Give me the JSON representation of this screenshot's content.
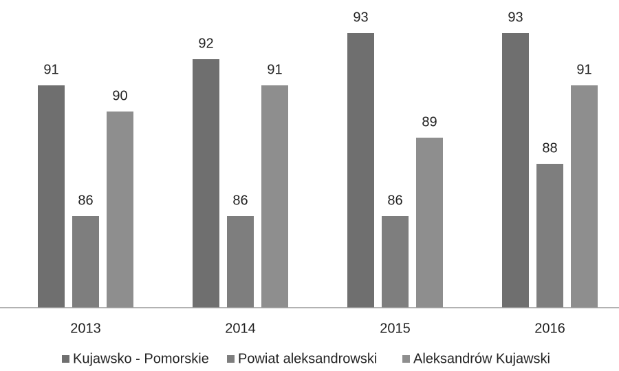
{
  "chart_data": {
    "type": "bar",
    "categories": [
      "2013",
      "2014",
      "2015",
      "2016"
    ],
    "series": [
      {
        "name": "Kujawsko - Pomorskie",
        "color": "#6f6f6f",
        "values": [
          91,
          92,
          93,
          93
        ]
      },
      {
        "name": "Powiat aleksandrowski",
        "color": "#7e7e7e",
        "values": [
          86,
          86,
          86,
          88
        ]
      },
      {
        "name": "Aleksandrów Kujawski",
        "color": "#8e8e8e",
        "values": [
          90,
          91,
          89,
          91
        ]
      }
    ],
    "ylim": [
      82.5,
      94
    ],
    "legend": "bottom"
  }
}
